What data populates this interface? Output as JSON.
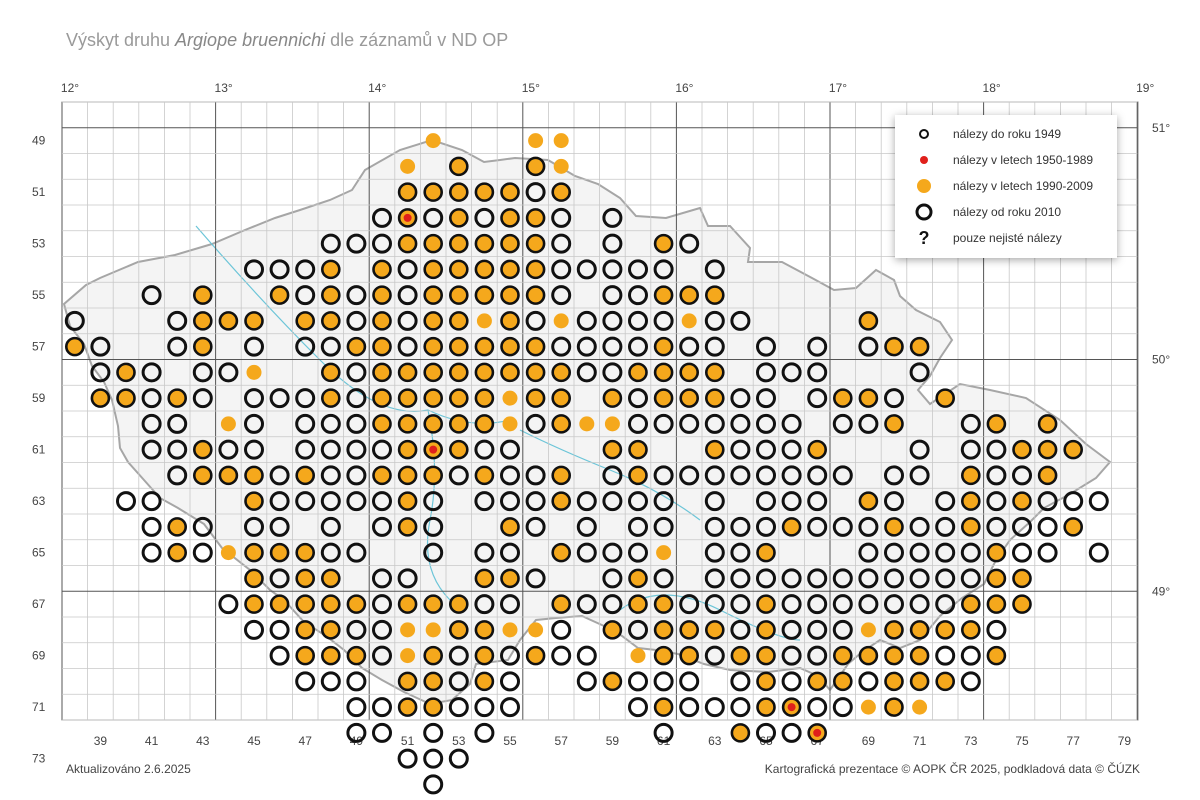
{
  "title": {
    "prefix": "Výskyt druhu ",
    "species": "Argiope bruennichi",
    "suffix": " dle záznamů v ND OP"
  },
  "axes": {
    "longitude_labels": [
      "12°",
      "13°",
      "14°",
      "15°",
      "16°",
      "17°",
      "18°",
      "19°"
    ],
    "latitude_labels": [
      "51°",
      "50°",
      "49°"
    ],
    "row_labels": [
      "49",
      "51",
      "53",
      "55",
      "57",
      "59",
      "61",
      "63",
      "65",
      "67",
      "69",
      "71",
      "73"
    ],
    "column_labels": [
      "39",
      "41",
      "43",
      "45",
      "47",
      "49",
      "51",
      "53",
      "55",
      "57",
      "59",
      "61",
      "63",
      "65",
      "67",
      "69",
      "71",
      "73",
      "75",
      "77",
      "79"
    ]
  },
  "legend": [
    {
      "symbol": "small-ring-icon",
      "label": "nálezy do roku 1949"
    },
    {
      "symbol": "red-dot-icon",
      "label": "nálezy v letech 1950-1989"
    },
    {
      "symbol": "orange-dot-icon",
      "label": "nálezy v letech 1990-2009"
    },
    {
      "symbol": "big-ring-icon",
      "label": "nálezy od roku 2010"
    },
    {
      "symbol": "question-icon",
      "label": "pouze nejisté nálezy"
    }
  ],
  "footer": {
    "updated": "Aktualizováno 2.6.2025",
    "credit": "Kartografická prezentace © AOPK ČR 2025, podkladová data © ČÚZK"
  },
  "colors": {
    "orange": "#F5A81C",
    "red": "#E0201B",
    "ring": "#111111",
    "grid": "#c8c8c8",
    "grid_major": "#555555",
    "border": "#a6a6a6",
    "river": "#6cc5d8"
  },
  "map_data": {
    "grid": {
      "first_column": 38,
      "last_column": 79,
      "first_row": 49,
      "last_row": 73
    },
    "legend_codes": {
      "O": "big ring only",
      "F": "orange fill with ring",
      "o": "orange fill only",
      "R": "red centre with orange fill and ring"
    },
    "rows": [
      {
        "row": 49,
        "cells": [
          "52:o",
          "56:o",
          "57:o"
        ]
      },
      {
        "row": 50,
        "cells": [
          "51:o",
          "53:F",
          "56:F",
          "57:o"
        ]
      },
      {
        "row": 51,
        "cells": [
          "51:F",
          "52:F",
          "53:F",
          "54:F",
          "55:F",
          "56:O",
          "57:F"
        ]
      },
      {
        "row": 52,
        "cells": [
          "50:O",
          "51:R",
          "52:O",
          "53:F",
          "54:O",
          "55:F",
          "56:F",
          "57:O",
          "59:O"
        ]
      },
      {
        "row": 53,
        "cells": [
          "48:O",
          "49:O",
          "50:O",
          "51:F",
          "52:F",
          "53:F",
          "54:F",
          "55:F",
          "56:F",
          "57:O",
          "59:O",
          "61:F",
          "62:O"
        ]
      },
      {
        "row": 54,
        "cells": [
          "45:O",
          "46:O",
          "47:O",
          "48:F",
          "50:F",
          "51:O",
          "52:F",
          "53:F",
          "54:F",
          "55:F",
          "56:F",
          "57:O",
          "58:O",
          "59:O",
          "60:O",
          "61:O",
          "63:O"
        ]
      },
      {
        "row": 55,
        "cells": [
          "41:O",
          "43:F",
          "46:F",
          "47:O",
          "48:F",
          "49:O",
          "50:F",
          "51:O",
          "52:F",
          "53:F",
          "54:F",
          "55:F",
          "56:F",
          "57:O",
          "59:O",
          "60:O",
          "61:F",
          "62:F",
          "63:F"
        ]
      },
      {
        "row": 56,
        "cells": [
          "38:O",
          "42:O",
          "43:F",
          "44:F",
          "45:F",
          "47:F",
          "48:F",
          "49:O",
          "50:F",
          "51:O",
          "52:F",
          "53:F",
          "54:o",
          "55:F",
          "56:O",
          "57:o",
          "58:O",
          "59:O",
          "60:O",
          "61:O",
          "62:o",
          "63:O",
          "64:O",
          "69:F"
        ]
      },
      {
        "row": 57,
        "cells": [
          "38:F",
          "39:O",
          "42:O",
          "43:F",
          "45:O",
          "47:O",
          "48:O",
          "49:F",
          "50:F",
          "51:O",
          "52:F",
          "53:F",
          "54:F",
          "55:F",
          "56:F",
          "57:O",
          "58:O",
          "59:O",
          "60:O",
          "61:F",
          "62:O",
          "63:O",
          "65:O",
          "67:O",
          "69:O",
          "70:F",
          "71:F"
        ]
      },
      {
        "row": 58,
        "cells": [
          "39:O",
          "40:F",
          "41:O",
          "43:O",
          "44:O",
          "45:o",
          "48:F",
          "49:O",
          "50:F",
          "51:F",
          "52:F",
          "53:F",
          "54:F",
          "55:F",
          "56:F",
          "57:F",
          "58:O",
          "59:O",
          "60:F",
          "61:F",
          "62:F",
          "63:F",
          "65:O",
          "66:O",
          "67:O",
          "71:O"
        ]
      },
      {
        "row": 59,
        "cells": [
          "39:F",
          "40:F",
          "41:O",
          "42:F",
          "43:O",
          "45:O",
          "46:O",
          "47:O",
          "48:F",
          "49:O",
          "50:F",
          "51:F",
          "52:F",
          "53:F",
          "54:F",
          "55:o",
          "56:F",
          "57:F",
          "59:F",
          "60:O",
          "61:F",
          "62:F",
          "63:F",
          "64:O",
          "65:O",
          "67:O",
          "68:F",
          "69:F",
          "70:O",
          "72:F"
        ]
      },
      {
        "row": 60,
        "cells": [
          "41:O",
          "42:O",
          "44:o",
          "45:O",
          "47:O",
          "48:O",
          "49:O",
          "50:F",
          "51:F",
          "52:F",
          "53:F",
          "54:F",
          "55:o",
          "56:O",
          "57:F",
          "58:o",
          "59:o",
          "60:O",
          "61:O",
          "62:O",
          "63:O",
          "64:O",
          "65:O",
          "66:O",
          "68:O",
          "69:O",
          "70:F",
          "73:O",
          "74:F",
          "76:F"
        ]
      },
      {
        "row": 61,
        "cells": [
          "41:O",
          "42:O",
          "43:F",
          "44:O",
          "45:O",
          "47:O",
          "48:O",
          "49:O",
          "50:O",
          "51:F",
          "52:R",
          "53:F",
          "54:O",
          "55:O",
          "59:F",
          "60:F",
          "63:F",
          "64:O",
          "65:O",
          "66:O",
          "67:F",
          "71:O",
          "73:O",
          "74:O",
          "75:F",
          "76:F",
          "77:F"
        ]
      },
      {
        "row": 62,
        "cells": [
          "42:O",
          "43:F",
          "44:F",
          "45:F",
          "46:O",
          "47:F",
          "48:O",
          "49:O",
          "50:F",
          "51:F",
          "52:F",
          "53:O",
          "54:F",
          "55:O",
          "56:O",
          "57:F",
          "59:O",
          "60:F",
          "61:O",
          "62:O",
          "63:O",
          "64:O",
          "65:O",
          "66:O",
          "67:O",
          "68:O",
          "70:O",
          "71:O",
          "73:F",
          "74:O",
          "75:O",
          "76:F"
        ]
      },
      {
        "row": 63,
        "cells": [
          "40:O",
          "41:O",
          "45:F",
          "46:O",
          "47:O",
          "48:O",
          "49:O",
          "50:O",
          "51:F",
          "52:O",
          "54:O",
          "55:O",
          "56:O",
          "57:F",
          "58:O",
          "59:O",
          "60:O",
          "61:O",
          "63:O",
          "65:O",
          "66:O",
          "67:O",
          "69:F",
          "70:O",
          "72:O",
          "73:F",
          "74:O",
          "75:F",
          "76:O",
          "77:O",
          "78:O"
        ]
      },
      {
        "row": 64,
        "cells": [
          "41:O",
          "42:F",
          "43:O",
          "45:O",
          "46:O",
          "48:O",
          "50:O",
          "51:F",
          "52:O",
          "55:F",
          "56:O",
          "58:O",
          "60:O",
          "61:O",
          "63:O",
          "64:O",
          "65:O",
          "66:F",
          "67:O",
          "68:O",
          "69:O",
          "70:F",
          "71:O",
          "72:O",
          "73:F",
          "74:O",
          "75:O",
          "76:O",
          "77:F"
        ]
      },
      {
        "row": 65,
        "cells": [
          "41:O",
          "42:F",
          "43:O",
          "44:o",
          "45:F",
          "46:F",
          "47:F",
          "48:O",
          "49:O",
          "52:O",
          "54:O",
          "55:O",
          "57:F",
          "58:O",
          "59:O",
          "60:O",
          "61:o",
          "63:O",
          "64:O",
          "65:F",
          "69:O",
          "70:O",
          "71:O",
          "72:O",
          "73:O",
          "74:F",
          "75:O",
          "76:O",
          "78:O"
        ]
      },
      {
        "row": 66,
        "cells": [
          "45:F",
          "46:O",
          "47:F",
          "48:F",
          "50:O",
          "51:O",
          "54:F",
          "55:F",
          "56:O",
          "59:O",
          "60:F",
          "61:O",
          "63:O",
          "64:O",
          "65:O",
          "66:O",
          "67:O",
          "68:O",
          "69:O",
          "70:O",
          "71:O",
          "72:O",
          "73:O",
          "74:F",
          "75:F"
        ]
      },
      {
        "row": 67,
        "cells": [
          "44:O",
          "45:F",
          "46:F",
          "47:F",
          "48:F",
          "49:F",
          "50:O",
          "51:F",
          "52:F",
          "53:F",
          "54:O",
          "55:O",
          "57:F",
          "58:O",
          "59:O",
          "60:F",
          "61:F",
          "62:O",
          "63:O",
          "64:O",
          "65:F",
          "66:O",
          "67:O",
          "68:O",
          "69:O",
          "70:O",
          "71:O",
          "72:O",
          "73:F",
          "74:F",
          "75:F"
        ]
      },
      {
        "row": 68,
        "cells": [
          "45:O",
          "46:O",
          "47:F",
          "48:F",
          "49:O",
          "50:O",
          "51:o",
          "52:o",
          "53:F",
          "54:F",
          "55:o",
          "56:o",
          "57:O",
          "59:F",
          "60:O",
          "61:F",
          "62:F",
          "63:F",
          "64:O",
          "65:F",
          "66:O",
          "67:O",
          "68:O",
          "69:o",
          "70:F",
          "71:F",
          "72:F",
          "73:F",
          "74:O"
        ]
      },
      {
        "row": 69,
        "cells": [
          "46:O",
          "47:F",
          "48:F",
          "49:F",
          "50:O",
          "51:o",
          "52:F",
          "53:O",
          "54:F",
          "55:O",
          "56:F",
          "57:O",
          "58:O",
          "60:o",
          "61:F",
          "62:F",
          "63:O",
          "64:F",
          "65:F",
          "66:O",
          "67:O",
          "68:F",
          "69:F",
          "70:F",
          "71:F",
          "72:O",
          "73:O",
          "74:F"
        ]
      },
      {
        "row": 70,
        "cells": [
          "47:O",
          "48:O",
          "49:O",
          "51:F",
          "52:F",
          "53:O",
          "54:F",
          "55:O",
          "58:O",
          "59:F",
          "60:O",
          "61:O",
          "62:O",
          "64:O",
          "65:F",
          "66:O",
          "67:F",
          "68:F",
          "69:O",
          "70:F",
          "71:F",
          "72:F",
          "73:O"
        ]
      },
      {
        "row": 71,
        "cells": [
          "49:O",
          "50:O",
          "51:F",
          "52:F",
          "53:O",
          "54:O",
          "55:O",
          "60:O",
          "61:F",
          "62:O",
          "63:O",
          "64:O",
          "65:F",
          "66:R",
          "67:O",
          "68:O",
          "69:o",
          "70:F",
          "71:o"
        ]
      },
      {
        "row": 72,
        "cells": [
          "49:O",
          "50:O",
          "52:O",
          "54:O",
          "61:O",
          "64:F",
          "65:O",
          "66:O",
          "67:R"
        ]
      },
      {
        "row": 73,
        "cells": [
          "51:O",
          "52:O",
          "53:O"
        ]
      },
      {
        "row": 74,
        "cells": [
          "52:O"
        ]
      }
    ]
  }
}
